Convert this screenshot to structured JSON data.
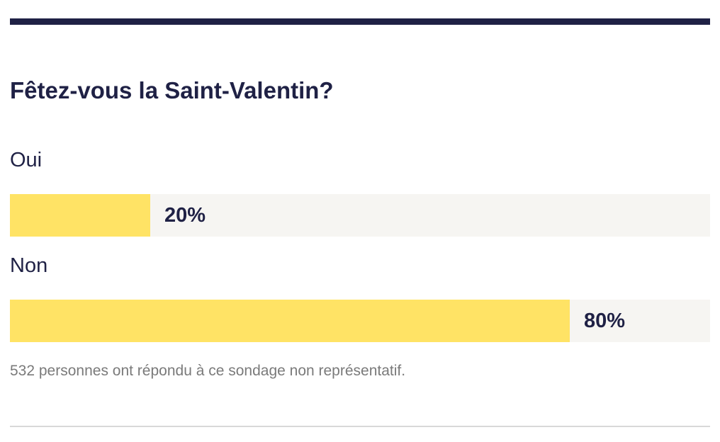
{
  "poll": {
    "question": "Fêtez-vous la Saint-Valentin?",
    "options": [
      {
        "label": "Oui",
        "percent_text": "20%",
        "fraction": 0.2
      },
      {
        "label": "Non",
        "percent_text": "80%",
        "fraction": 0.8
      }
    ],
    "footnote": "532 personnes ont répondu à ce sondage non représentatif."
  },
  "colors": {
    "accent_rule": "#1f2145",
    "bar_fill": "#ffe365",
    "bar_track": "#f6f5f2",
    "text": "#1f2145",
    "footnote_text": "#7a7a7a",
    "divider": "#d8d8d8"
  }
}
